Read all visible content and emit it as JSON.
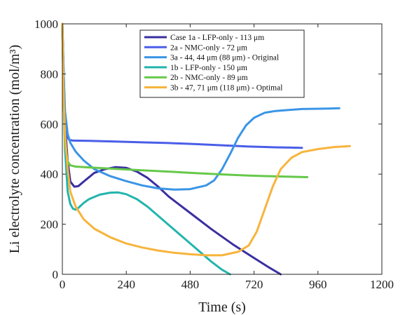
{
  "chart_data": {
    "type": "line",
    "xlabel": "Time (s)",
    "ylabel": "Li electrolyte concentration (mol/m³)",
    "xlim": [
      0,
      1200
    ],
    "ylim": [
      0,
      1000
    ],
    "xticks": [
      "0",
      "240",
      "480",
      "720",
      "960",
      "1200"
    ],
    "yticks": [
      "0",
      "200",
      "400",
      "600",
      "800",
      "1000"
    ],
    "grid": false,
    "legend_position": "top-center",
    "series": [
      {
        "name": "Case 1a - LFP-only - 113 μm",
        "color": "#3a2fa0",
        "x": [
          0,
          5,
          10,
          20,
          30,
          45,
          60,
          80,
          120,
          160,
          200,
          240,
          280,
          320,
          360,
          400,
          480,
          560,
          640,
          720,
          780,
          820
        ],
        "y": [
          1000,
          800,
          600,
          450,
          370,
          350,
          352,
          370,
          405,
          420,
          428,
          425,
          410,
          385,
          350,
          310,
          245,
          180,
          120,
          65,
          25,
          0
        ]
      },
      {
        "name": "2a - NMC-only - 72 μm",
        "color": "#4a5ee8",
        "x": [
          0,
          5,
          10,
          15,
          25,
          40,
          100,
          200,
          300,
          400,
          500,
          600,
          700,
          800,
          860,
          900
        ],
        "y": [
          1000,
          760,
          620,
          560,
          537,
          534,
          533,
          530,
          527,
          524,
          520,
          515,
          510,
          507,
          506,
          505
        ]
      },
      {
        "name": "3a - 44, 44 μm (88 μm) - Original",
        "color": "#3a95e6",
        "x": [
          0,
          5,
          10,
          20,
          30,
          50,
          80,
          120,
          180,
          240,
          300,
          360,
          420,
          480,
          540,
          570,
          600,
          630,
          660,
          690,
          720,
          760,
          800,
          850,
          900,
          960,
          1000,
          1040
        ],
        "y": [
          1000,
          800,
          650,
          560,
          525,
          490,
          455,
          420,
          392,
          372,
          355,
          343,
          338,
          340,
          355,
          375,
          420,
          480,
          545,
          595,
          625,
          645,
          652,
          656,
          660,
          661,
          662,
          663
        ]
      },
      {
        "name": "1b - LFP-only - 150 μm",
        "color": "#22b5ad",
        "x": [
          0,
          5,
          10,
          20,
          30,
          40,
          50,
          60,
          80,
          100,
          140,
          180,
          210,
          240,
          280,
          320,
          380,
          440,
          500,
          560,
          600,
          630
        ],
        "y": [
          1000,
          700,
          500,
          330,
          280,
          262,
          258,
          265,
          285,
          300,
          318,
          326,
          327,
          320,
          300,
          270,
          215,
          160,
          105,
          50,
          18,
          0
        ]
      },
      {
        "name": "2b - NMC-only - 89 μm",
        "color": "#66c84a",
        "x": [
          0,
          5,
          10,
          20,
          30,
          50,
          100,
          200,
          300,
          400,
          500,
          600,
          700,
          800,
          880,
          920
        ],
        "y": [
          1000,
          700,
          520,
          450,
          435,
          430,
          427,
          421,
          415,
          410,
          404,
          399,
          394,
          391,
          389,
          388
        ]
      },
      {
        "name": "3b - 47, 71 μm (118 μm) - Optimal",
        "color": "#f7b43c",
        "x": [
          0,
          5,
          10,
          20,
          30,
          50,
          80,
          120,
          180,
          240,
          300,
          360,
          420,
          480,
          540,
          600,
          660,
          700,
          730,
          760,
          790,
          820,
          860,
          900,
          960,
          1020,
          1080
        ],
        "y": [
          1000,
          700,
          560,
          420,
          330,
          270,
          220,
          182,
          148,
          123,
          107,
          95,
          86,
          80,
          76,
          76,
          90,
          115,
          170,
          260,
          350,
          420,
          465,
          488,
          500,
          508,
          512
        ]
      }
    ]
  }
}
